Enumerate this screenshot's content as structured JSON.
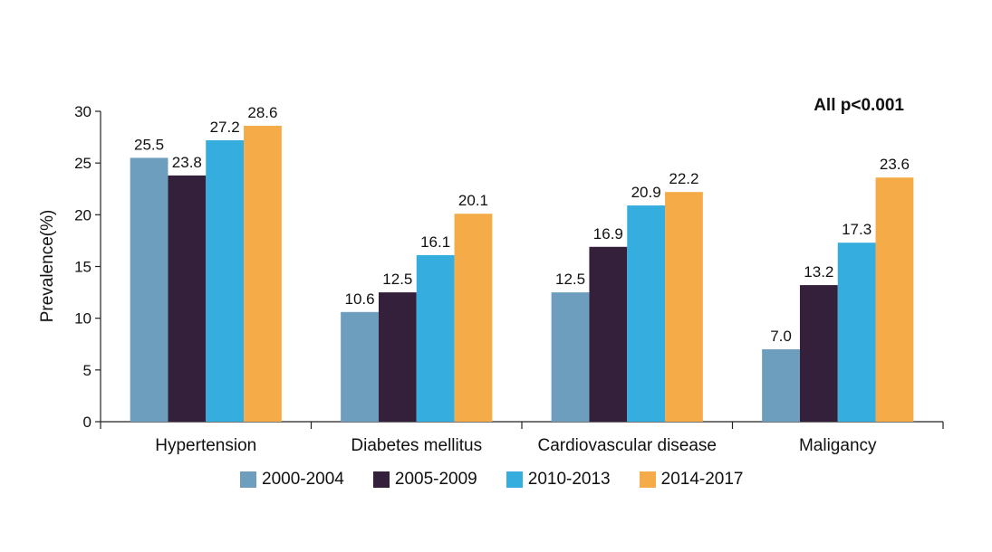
{
  "chart_data": {
    "type": "bar",
    "ylabel": "Prevalence(%)",
    "xlabel": "",
    "ylim": [
      0,
      30
    ],
    "yticks": [
      0,
      5,
      10,
      15,
      20,
      25,
      30
    ],
    "categories": [
      "Hypertension",
      "Diabetes mellitus",
      "Cardiovascular disease",
      "Maligancy"
    ],
    "series": [
      {
        "name": "2000-2004",
        "color": "#6e9ebd",
        "values": [
          25.5,
          10.6,
          12.5,
          7.0
        ],
        "labels": [
          "25.5",
          "10.6",
          "12.5",
          "7.0"
        ]
      },
      {
        "name": "2005-2009",
        "color": "#35203c",
        "values": [
          23.8,
          12.5,
          16.9,
          13.2
        ],
        "labels": [
          "23.8",
          "12.5",
          "16.9",
          "13.2"
        ]
      },
      {
        "name": "2010-2013",
        "color": "#35aedf",
        "values": [
          27.2,
          16.1,
          20.9,
          17.3
        ],
        "labels": [
          "27.2",
          "16.1",
          "20.9",
          "17.3"
        ]
      },
      {
        "name": "2014-2017",
        "color": "#f5ac48",
        "values": [
          28.6,
          20.1,
          22.2,
          23.6
        ],
        "labels": [
          "28.6",
          "20.1",
          "22.2",
          "23.6"
        ]
      }
    ],
    "annotation": "All p<0.001",
    "legend_position": "bottom"
  }
}
